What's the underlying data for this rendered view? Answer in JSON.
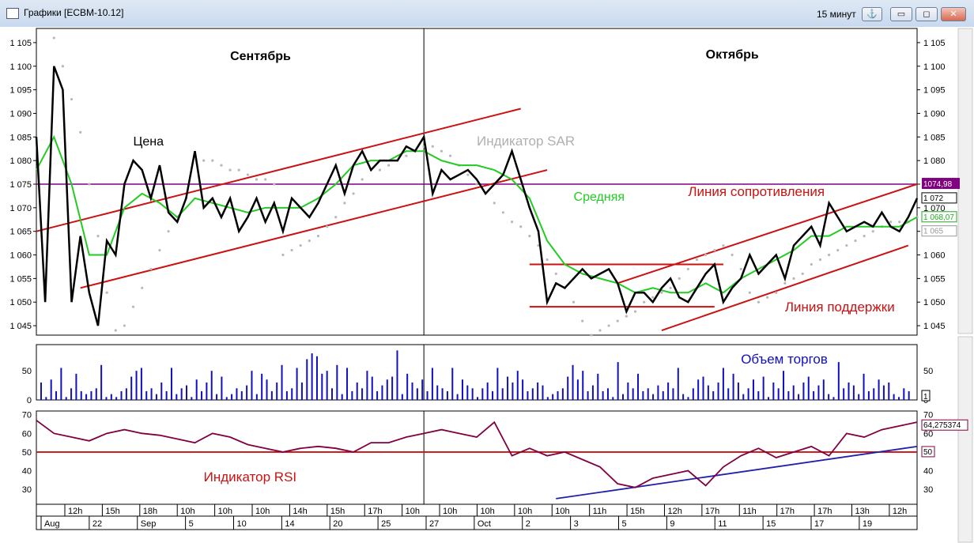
{
  "window": {
    "title": "Графики [ECBM-10.12]",
    "timeframe": "15 минут",
    "anchor_symbol": "⚓",
    "minimize_symbol": "▭",
    "restore_symbol": "◻",
    "close_symbol": "✕"
  },
  "chart_data": [
    {
      "type": "line",
      "panel": "price",
      "y_ticks": [
        "1 045",
        "1 050",
        "1 055",
        "1 060",
        "1 065",
        "1 070",
        "1 075",
        "1 080",
        "1 085",
        "1 090",
        "1 095",
        "1 100",
        "1 105"
      ],
      "ylim": [
        1.043,
        1.108
      ],
      "xlim": [
        0,
        100
      ],
      "series": [
        {
          "name": "Цена",
          "color": "#000000",
          "x": [
            0,
            1,
            2,
            3,
            4,
            5,
            6,
            7,
            8,
            9,
            10,
            11,
            12,
            13,
            14,
            15,
            16,
            17,
            18,
            19,
            20,
            21,
            22,
            23,
            24,
            25,
            26,
            27,
            28,
            29,
            30,
            31,
            32,
            33,
            34,
            35,
            36,
            37,
            38,
            39,
            40,
            41,
            42,
            43,
            44,
            45,
            46,
            47,
            48,
            49,
            50,
            51,
            52,
            53,
            54,
            55,
            56,
            57,
            58,
            59,
            60,
            61,
            62,
            63,
            64,
            65,
            66,
            67,
            68,
            69,
            70,
            71,
            72,
            73,
            74,
            75,
            76,
            77,
            78,
            79,
            80,
            81,
            82,
            83,
            84,
            85,
            86,
            87,
            88,
            89,
            90,
            91,
            92,
            93,
            94,
            95,
            96,
            97,
            98,
            99,
            100
          ],
          "y": [
            1.085,
            1.05,
            1.1,
            1.095,
            1.05,
            1.064,
            1.052,
            1.045,
            1.063,
            1.06,
            1.075,
            1.08,
            1.078,
            1.072,
            1.079,
            1.069,
            1.067,
            1.072,
            1.082,
            1.07,
            1.072,
            1.068,
            1.072,
            1.065,
            1.068,
            1.072,
            1.067,
            1.071,
            1.065,
            1.072,
            1.07,
            1.068,
            1.071,
            1.075,
            1.079,
            1.073,
            1.079,
            1.082,
            1.078,
            1.08,
            1.08,
            1.08,
            1.083,
            1.082,
            1.085,
            1.073,
            1.078,
            1.076,
            1.077,
            1.078,
            1.076,
            1.073,
            1.075,
            1.077,
            1.082,
            1.076,
            1.07,
            1.065,
            1.05,
            1.054,
            1.053,
            1.055,
            1.057,
            1.055,
            1.056,
            1.057,
            1.054,
            1.048,
            1.052,
            1.052,
            1.05,
            1.053,
            1.055,
            1.051,
            1.05,
            1.053,
            1.056,
            1.058,
            1.05,
            1.053,
            1.055,
            1.06,
            1.056,
            1.058,
            1.06,
            1.055,
            1.062,
            1.064,
            1.066,
            1.062,
            1.071,
            1.068,
            1.065,
            1.066,
            1.067,
            1.066,
            1.069,
            1.066,
            1.065,
            1.068,
            1.072
          ]
        },
        {
          "name": "Средняя",
          "color": "#22cc22",
          "x": [
            0,
            2,
            4,
            6,
            8,
            10,
            12,
            14,
            16,
            18,
            20,
            22,
            24,
            26,
            28,
            30,
            32,
            34,
            36,
            38,
            40,
            42,
            44,
            46,
            48,
            50,
            52,
            54,
            56,
            58,
            60,
            62,
            64,
            66,
            68,
            70,
            72,
            74,
            76,
            78,
            80,
            82,
            84,
            86,
            88,
            90,
            92,
            94,
            96,
            98,
            100
          ],
          "y": [
            1.078,
            1.085,
            1.075,
            1.06,
            1.06,
            1.07,
            1.073,
            1.071,
            1.068,
            1.072,
            1.071,
            1.07,
            1.069,
            1.07,
            1.07,
            1.07,
            1.072,
            1.075,
            1.079,
            1.08,
            1.08,
            1.082,
            1.082,
            1.08,
            1.079,
            1.079,
            1.078,
            1.076,
            1.072,
            1.063,
            1.058,
            1.056,
            1.055,
            1.054,
            1.052,
            1.053,
            1.052,
            1.052,
            1.054,
            1.052,
            1.055,
            1.057,
            1.059,
            1.061,
            1.064,
            1.064,
            1.066,
            1.066,
            1.066,
            1.066,
            1.068
          ]
        },
        {
          "name": "Индикатор SAR",
          "color": "#b8b8b8",
          "x": [
            2,
            3,
            4,
            5,
            6,
            7,
            8,
            9,
            10,
            11,
            12,
            13,
            14,
            15,
            16,
            17,
            18,
            19,
            20,
            21,
            22,
            23,
            24,
            25,
            26,
            27,
            28,
            29,
            30,
            31,
            32,
            33,
            34,
            35,
            36,
            37,
            38,
            39,
            40,
            41,
            42,
            43,
            44,
            45,
            46,
            47,
            48,
            49,
            50,
            51,
            52,
            53,
            54,
            55,
            56,
            57,
            58,
            59,
            60,
            61,
            62,
            63,
            64,
            65,
            66,
            67,
            68,
            69,
            70,
            71,
            72,
            73,
            74,
            75,
            76,
            77,
            78,
            79,
            80,
            81,
            82,
            83,
            84,
            85,
            86,
            87,
            88,
            89,
            90,
            91,
            92,
            93,
            94,
            95,
            96,
            97,
            98,
            99,
            100
          ],
          "y": [
            1.106,
            1.1,
            1.093,
            1.086,
            1.075,
            1.064,
            1.052,
            1.044,
            1.045,
            1.049,
            1.053,
            1.057,
            1.061,
            1.065,
            1.068,
            1.072,
            1.081,
            1.08,
            1.08,
            1.079,
            1.078,
            1.078,
            1.077,
            1.076,
            1.076,
            1.075,
            1.06,
            1.061,
            1.062,
            1.063,
            1.064,
            1.066,
            1.068,
            1.071,
            1.073,
            1.076,
            1.078,
            1.078,
            1.079,
            1.08,
            1.081,
            1.082,
            1.083,
            1.083,
            1.082,
            1.081,
            1.079,
            1.077,
            1.075,
            1.073,
            1.071,
            1.069,
            1.067,
            1.066,
            1.064,
            1.062,
            1.059,
            1.056,
            1.053,
            1.05,
            1.046,
            1.043,
            1.044,
            1.045,
            1.046,
            1.047,
            1.048,
            1.05,
            1.051,
            1.052,
            1.053,
            1.055,
            1.057,
            1.059,
            1.06,
            1.061,
            1.062,
            1.06,
            1.057,
            1.052,
            1.05,
            1.051,
            1.052,
            1.054,
            1.055,
            1.056,
            1.058,
            1.059,
            1.06,
            1.061,
            1.062,
            1.063,
            1.064,
            1.065,
            1.066,
            1.067,
            1.067,
            1.067,
            1.068
          ]
        }
      ],
      "lines": [
        {
          "label": "",
          "color": "#cc1111",
          "x": [
            0,
            55
          ],
          "y": [
            1.065,
            1.091
          ]
        },
        {
          "label": "",
          "color": "#cc1111",
          "x": [
            5,
            58
          ],
          "y": [
            1.053,
            1.078
          ]
        },
        {
          "label": "Линия сопротивления",
          "color": "#cc1111",
          "x": [
            66,
            100
          ],
          "y": [
            1.054,
            1.075
          ]
        },
        {
          "label": "Линия поддержки",
          "color": "#cc1111",
          "x": [
            71,
            99
          ],
          "y": [
            1.044,
            1.062
          ]
        },
        {
          "label": "",
          "color": "#cc1111",
          "x": [
            56,
            78
          ],
          "y": [
            1.058,
            1.058
          ]
        },
        {
          "label": "",
          "color": "#cc1111",
          "x": [
            56,
            77
          ],
          "y": [
            1.049,
            1.049
          ]
        }
      ],
      "horizontal_levels": [
        {
          "value": 1.07499,
          "label": "1074,98",
          "color": "#800080"
        }
      ],
      "price_tags": [
        {
          "value": 1.072,
          "label": "1 072",
          "color": "#000000"
        },
        {
          "value": 1.068,
          "label": "1 068,07",
          "color": "#22aa22"
        },
        {
          "value": 1.065,
          "label": "1 065",
          "color": "#999999"
        }
      ],
      "annotations": [
        "Сентябрь",
        "Октябрь",
        "Цена",
        "Индикатор SAR",
        "Средняя",
        "Линия сопротивления",
        "Линия поддержки"
      ],
      "section_split_x": 44,
      "legend_placement": "inline annotations"
    },
    {
      "type": "bar",
      "panel": "volume",
      "title": "Объем торгов",
      "color": "#1010c0",
      "y_ticks": [
        "0",
        "50"
      ],
      "right_tag": "1",
      "ylim": [
        0,
        95
      ],
      "values": [
        30,
        5,
        35,
        15,
        55,
        5,
        20,
        45,
        15,
        10,
        15,
        20,
        60,
        5,
        10,
        5,
        15,
        20,
        40,
        50,
        55,
        15,
        20,
        10,
        30,
        15,
        55,
        10,
        20,
        25,
        5,
        35,
        15,
        30,
        50,
        10,
        40,
        5,
        10,
        20,
        15,
        25,
        50,
        10,
        45,
        35,
        15,
        30,
        60,
        15,
        20,
        55,
        30,
        70,
        80,
        75,
        45,
        50,
        20,
        60,
        10,
        55,
        15,
        30,
        20,
        50,
        40,
        15,
        25,
        35,
        40,
        85,
        10,
        45,
        30,
        20,
        35,
        15,
        55,
        25,
        20,
        15,
        55,
        10,
        35,
        25,
        20,
        5,
        20,
        30,
        15,
        55,
        20,
        40,
        30,
        50,
        35,
        15,
        20,
        30,
        25,
        5,
        10,
        15,
        20,
        40,
        60,
        35,
        50,
        15,
        25,
        45,
        15,
        20,
        5,
        65,
        10,
        30,
        20,
        45,
        15,
        20,
        10,
        25,
        15,
        30,
        20,
        55,
        10,
        5,
        20,
        35,
        40,
        25,
        15,
        30,
        55,
        20,
        45,
        30,
        10,
        20,
        35,
        15,
        40,
        5,
        30,
        20,
        50,
        15,
        25,
        10,
        30,
        40,
        15,
        25,
        35,
        10,
        5,
        65,
        20,
        30,
        25,
        10,
        45,
        15,
        20,
        35,
        25,
        30,
        10,
        5,
        20,
        15
      ]
    },
    {
      "type": "line",
      "panel": "rsi",
      "series": [
        {
          "name": "Индикатор RSI",
          "color": "#800040",
          "x": [
            0,
            2,
            4,
            6,
            8,
            10,
            12,
            14,
            16,
            18,
            20,
            22,
            24,
            26,
            28,
            30,
            32,
            34,
            36,
            38,
            40,
            42,
            44,
            46,
            48,
            50,
            52,
            54,
            56,
            58,
            60,
            62,
            64,
            66,
            68,
            70,
            72,
            74,
            76,
            78,
            80,
            82,
            84,
            86,
            88,
            90,
            92,
            94,
            96,
            98,
            100
          ],
          "y": [
            67,
            60,
            58,
            56,
            60,
            62,
            60,
            59,
            57,
            55,
            60,
            58,
            54,
            52,
            50,
            52,
            53,
            52,
            50,
            55,
            55,
            58,
            60,
            62,
            60,
            58,
            66,
            48,
            52,
            48,
            50,
            46,
            42,
            33,
            31,
            36,
            38,
            40,
            32,
            42,
            48,
            52,
            47,
            50,
            53,
            48,
            60,
            58,
            62,
            64,
            66
          ]
        }
      ],
      "lines": [
        {
          "label": "",
          "color": "#cc1111",
          "x": [
            0,
            100
          ],
          "y": [
            50,
            50
          ]
        },
        {
          "label": "",
          "color": "#2020aa",
          "x": [
            59,
            100
          ],
          "y": [
            25,
            53
          ]
        }
      ],
      "y_ticks": [
        "30",
        "40",
        "50",
        "60",
        "70"
      ],
      "ylim": [
        22,
        72
      ],
      "right_tags": [
        {
          "value": 64.275374,
          "label": "64,275374"
        },
        {
          "value": 50,
          "label": "50"
        }
      ],
      "annotation": "Индикатор RSI"
    }
  ],
  "time_axis": {
    "top_row": [
      "12h",
      "15h",
      "18h",
      "10h",
      "10h",
      "10h",
      "14h",
      "15h",
      "17h",
      "10h",
      "10h",
      "10h",
      "10h",
      "10h",
      "11h",
      "15h",
      "12h",
      "17h",
      "11h",
      "17h",
      "17h",
      "13h",
      "12h"
    ],
    "bottom_row": [
      "Aug",
      "22",
      "Sep",
      "5",
      "10",
      "14",
      "20",
      "25",
      "27",
      "Oct",
      "2",
      "3",
      "5",
      "9",
      "11",
      "15",
      "17",
      "19"
    ]
  }
}
